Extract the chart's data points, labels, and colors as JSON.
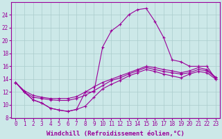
{
  "bg_color": "#cce8e8",
  "grid_color": "#aacccc",
  "line_color": "#990099",
  "marker": "+",
  "markersize": 3.5,
  "linewidth": 0.8,
  "xlabel": "Windchill (Refroidissement éolien,°C)",
  "xlabel_fontsize": 6.5,
  "tick_fontsize": 5.5,
  "ylim": [
    8,
    26
  ],
  "xlim": [
    -0.5,
    23.5
  ],
  "yticks": [
    8,
    10,
    12,
    14,
    16,
    18,
    20,
    22,
    24
  ],
  "xticks": [
    0,
    1,
    2,
    3,
    4,
    5,
    6,
    7,
    8,
    9,
    10,
    11,
    12,
    13,
    14,
    15,
    16,
    17,
    18,
    19,
    20,
    21,
    22,
    23
  ],
  "series": [
    [
      13.5,
      12.0,
      10.8,
      10.3,
      9.5,
      9.2,
      9.0,
      9.3,
      12.0,
      12.0,
      19.0,
      21.5,
      22.5,
      24.0,
      24.8,
      25.0,
      23.0,
      20.5,
      17.0,
      16.7,
      16.0,
      16.0,
      16.0,
      14.0
    ],
    [
      13.5,
      12.0,
      11.2,
      11.0,
      10.8,
      10.7,
      10.7,
      11.0,
      11.5,
      12.2,
      13.0,
      13.8,
      14.2,
      14.8,
      15.3,
      15.8,
      15.5,
      15.2,
      15.0,
      14.8,
      15.0,
      15.5,
      15.3,
      14.2
    ],
    [
      13.5,
      12.2,
      11.5,
      11.2,
      11.0,
      11.0,
      11.0,
      11.3,
      12.0,
      12.8,
      13.5,
      14.0,
      14.5,
      15.0,
      15.5,
      16.0,
      15.8,
      15.5,
      15.3,
      15.0,
      15.3,
      15.8,
      15.5,
      14.3
    ],
    [
      13.5,
      12.0,
      10.8,
      10.3,
      9.5,
      9.2,
      9.0,
      9.3,
      9.8,
      11.2,
      12.5,
      13.2,
      13.8,
      14.5,
      15.0,
      15.5,
      15.2,
      14.8,
      14.5,
      14.2,
      14.8,
      15.2,
      15.0,
      14.0
    ]
  ]
}
